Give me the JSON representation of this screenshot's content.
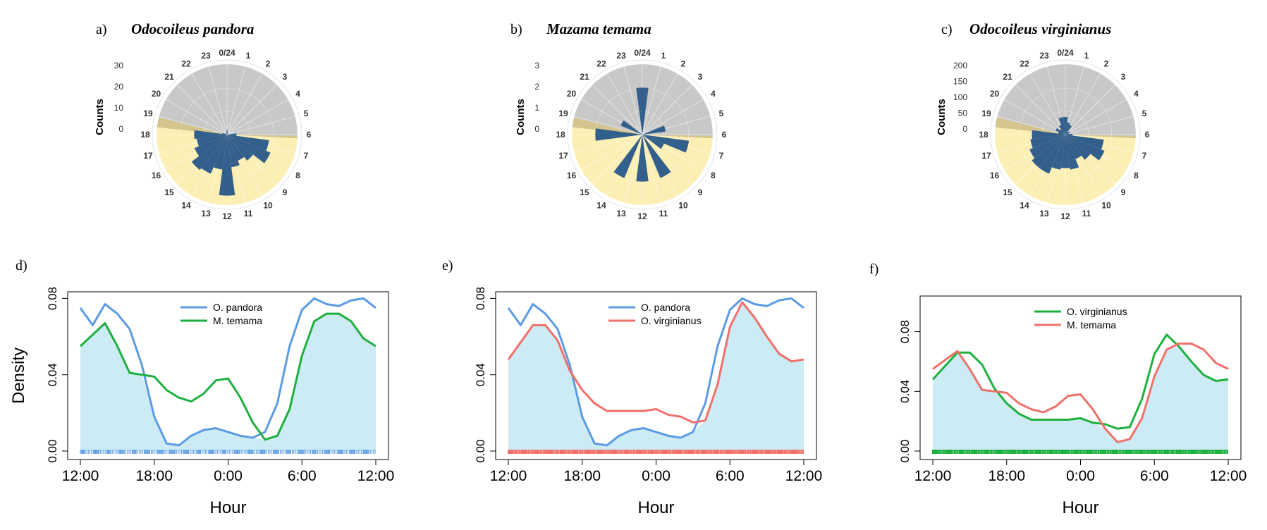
{
  "chart_data": [
    {
      "type": "polar-bar",
      "panel": "a)",
      "title": "Odocoileus pandora",
      "ylabel": "Counts",
      "rlim": [
        0,
        30
      ],
      "radial_ticks": [
        "0",
        "10",
        "20",
        "30"
      ],
      "hour_labels": [
        "0/24",
        "1",
        "2",
        "3",
        "4",
        "5",
        "6",
        "7",
        "8",
        "9",
        "10",
        "11",
        "12",
        "13",
        "14",
        "15",
        "16",
        "17",
        "18",
        "19",
        "20",
        "21",
        "22",
        "23"
      ],
      "day_hours": [
        6.2,
        18.4
      ],
      "colors": {
        "night": "#c8c8c8",
        "day": "#fcefb4",
        "twilight": "#d6c48e",
        "bars": "#335f8c"
      },
      "values": [
        2,
        1,
        1,
        0,
        0,
        0,
        4,
        18,
        20,
        14,
        12,
        14,
        26,
        15,
        18,
        19,
        15,
        13,
        14,
        2,
        1,
        0,
        0,
        1
      ]
    },
    {
      "type": "polar-bar",
      "panel": "b)",
      "title": "Mazama temama",
      "ylabel": "Counts",
      "rlim": [
        0,
        3
      ],
      "radial_ticks": [
        "0",
        "1",
        "2",
        "3"
      ],
      "hour_labels": [
        "0/24",
        "1",
        "2",
        "3",
        "4",
        "5",
        "6",
        "7",
        "8",
        "9",
        "10",
        "11",
        "12",
        "13",
        "14",
        "15",
        "16",
        "17",
        "18",
        "19",
        "20",
        "21",
        "22",
        "23"
      ],
      "day_hours": [
        6.2,
        18.4
      ],
      "colors": {
        "night": "#c8c8c8",
        "day": "#fcefb4",
        "twilight": "#d6c48e",
        "bars": "#335f8c"
      },
      "values": [
        2,
        0,
        0,
        0,
        0,
        1,
        0,
        2,
        1,
        0,
        2,
        0,
        2,
        0,
        2,
        0,
        0,
        0,
        2,
        0,
        1,
        0,
        0,
        0
      ]
    },
    {
      "type": "polar-bar",
      "panel": "c)",
      "title": "Odocoileus virginianus",
      "ylabel": "Counts",
      "rlim": [
        0,
        200
      ],
      "radial_ticks": [
        "0",
        "50",
        "100",
        "150",
        "200"
      ],
      "hour_labels": [
        "0/24",
        "1",
        "2",
        "3",
        "4",
        "5",
        "6",
        "7",
        "8",
        "9",
        "10",
        "11",
        "12",
        "13",
        "14",
        "15",
        "16",
        "17",
        "18",
        "19",
        "20",
        "21",
        "22",
        "23"
      ],
      "day_hours": [
        6.2,
        18.4
      ],
      "colors": {
        "night": "#c8c8c8",
        "day": "#fcefb4",
        "twilight": "#d6c48e",
        "bars": "#335f8c"
      },
      "values": [
        50,
        35,
        30,
        10,
        15,
        10,
        20,
        110,
        120,
        90,
        75,
        100,
        95,
        100,
        120,
        120,
        110,
        100,
        95,
        20,
        30,
        20,
        30,
        50
      ]
    },
    {
      "type": "line",
      "panel": "d)",
      "xlabel": "Hour",
      "ylabel": "Density",
      "x_ticks": [
        "12:00",
        "18:00",
        "0:00",
        "6:00",
        "12:00"
      ],
      "y_ticks": [
        "0.00",
        "0.04",
        "0.08"
      ],
      "ylim": [
        0,
        0.082
      ],
      "overlap_fill": "#cdebf4",
      "series": [
        {
          "name": "O. pandora",
          "color": "#5b9be6",
          "x": [
            0,
            1,
            2,
            3,
            4,
            5,
            6,
            7,
            8,
            9,
            10,
            11,
            12,
            13,
            14,
            15,
            16,
            17,
            18,
            19,
            20,
            21,
            22,
            23,
            24
          ],
          "values": [
            0.075,
            0.066,
            0.077,
            0.072,
            0.064,
            0.045,
            0.018,
            0.004,
            0.003,
            0.008,
            0.011,
            0.012,
            0.01,
            0.008,
            0.007,
            0.01,
            0.025,
            0.055,
            0.074,
            0.08,
            0.077,
            0.076,
            0.079,
            0.08,
            0.075
          ]
        },
        {
          "name": "M. temama",
          "color": "#1db03f",
          "x": [
            0,
            1,
            2,
            3,
            4,
            5,
            6,
            7,
            8,
            9,
            10,
            11,
            12,
            13,
            14,
            15,
            16,
            17,
            18,
            19,
            20,
            21,
            22,
            23,
            24
          ],
          "values": [
            0.055,
            0.061,
            0.067,
            0.055,
            0.041,
            0.04,
            0.039,
            0.032,
            0.028,
            0.026,
            0.03,
            0.037,
            0.038,
            0.028,
            0.015,
            0.006,
            0.008,
            0.022,
            0.05,
            0.068,
            0.072,
            0.072,
            0.068,
            0.059,
            0.055
          ]
        }
      ],
      "rug_colors": [
        "#5b9be6"
      ]
    },
    {
      "type": "line",
      "panel": "e)",
      "xlabel": "Hour",
      "ylabel": "",
      "x_ticks": [
        "12:00",
        "18:00",
        "0:00",
        "6:00",
        "12:00"
      ],
      "y_ticks": [
        "0.00",
        "0.04",
        "0.08"
      ],
      "ylim": [
        0,
        0.082
      ],
      "overlap_fill": "#cdebf4",
      "series": [
        {
          "name": "O. pandora",
          "color": "#5b9be6",
          "x": [
            0,
            1,
            2,
            3,
            4,
            5,
            6,
            7,
            8,
            9,
            10,
            11,
            12,
            13,
            14,
            15,
            16,
            17,
            18,
            19,
            20,
            21,
            22,
            23,
            24
          ],
          "values": [
            0.075,
            0.066,
            0.077,
            0.072,
            0.064,
            0.045,
            0.018,
            0.004,
            0.003,
            0.008,
            0.011,
            0.012,
            0.01,
            0.008,
            0.007,
            0.01,
            0.025,
            0.055,
            0.074,
            0.08,
            0.077,
            0.076,
            0.079,
            0.08,
            0.075
          ]
        },
        {
          "name": "O. virginianus",
          "color": "#f0706a",
          "x": [
            0,
            1,
            2,
            3,
            4,
            5,
            6,
            7,
            8,
            9,
            10,
            11,
            12,
            13,
            14,
            15,
            16,
            17,
            18,
            19,
            20,
            21,
            22,
            23,
            24
          ],
          "values": [
            0.048,
            0.057,
            0.066,
            0.066,
            0.058,
            0.042,
            0.032,
            0.025,
            0.021,
            0.021,
            0.021,
            0.021,
            0.022,
            0.019,
            0.018,
            0.015,
            0.016,
            0.035,
            0.065,
            0.078,
            0.07,
            0.06,
            0.051,
            0.047,
            0.048
          ]
        }
      ],
      "rug_colors": [
        "#f0706a"
      ]
    },
    {
      "type": "line",
      "panel": "f)",
      "xlabel": "Hour",
      "ylabel": "",
      "x_ticks": [
        "12:00",
        "18:00",
        "0:00",
        "6:00",
        "12:00"
      ],
      "y_ticks": [
        "0.00",
        "0.04",
        "0.08"
      ],
      "ylim": [
        0,
        0.102
      ],
      "overlap_fill": "#cdebf4",
      "series": [
        {
          "name": "O. virginianus",
          "color": "#1db03f",
          "x": [
            0,
            1,
            2,
            3,
            4,
            5,
            6,
            7,
            8,
            9,
            10,
            11,
            12,
            13,
            14,
            15,
            16,
            17,
            18,
            19,
            20,
            21,
            22,
            23,
            24
          ],
          "values": [
            0.048,
            0.057,
            0.066,
            0.066,
            0.058,
            0.042,
            0.032,
            0.025,
            0.021,
            0.021,
            0.021,
            0.021,
            0.022,
            0.019,
            0.018,
            0.015,
            0.016,
            0.035,
            0.065,
            0.078,
            0.07,
            0.06,
            0.051,
            0.047,
            0.048
          ]
        },
        {
          "name": "M. temama",
          "color": "#f0706a",
          "x": [
            0,
            1,
            2,
            3,
            4,
            5,
            6,
            7,
            8,
            9,
            10,
            11,
            12,
            13,
            14,
            15,
            16,
            17,
            18,
            19,
            20,
            21,
            22,
            23,
            24
          ],
          "values": [
            0.055,
            0.061,
            0.067,
            0.055,
            0.041,
            0.04,
            0.039,
            0.032,
            0.028,
            0.026,
            0.03,
            0.037,
            0.038,
            0.028,
            0.015,
            0.006,
            0.008,
            0.022,
            0.05,
            0.068,
            0.072,
            0.072,
            0.068,
            0.059,
            0.055
          ]
        }
      ],
      "rug_colors": [
        "#1db03f"
      ]
    }
  ]
}
